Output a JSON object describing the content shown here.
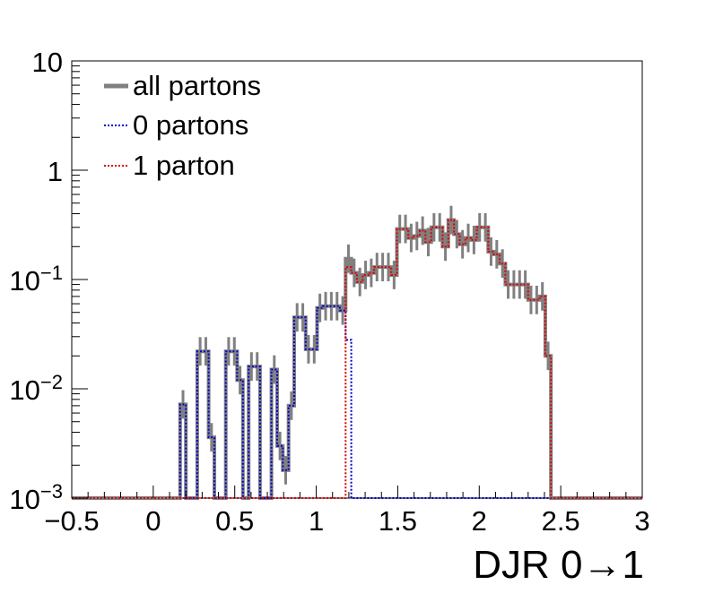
{
  "chart_data": {
    "type": "line",
    "title": "",
    "xlabel": "DJR 0→1",
    "ylabel": "",
    "xlim": [
      -0.5,
      3
    ],
    "ylim": [
      0.001,
      10
    ],
    "yscale": "log",
    "x_tick_labels": [
      "−0.5",
      "0",
      "0.5",
      "1",
      "1.5",
      "2",
      "2.5",
      "3"
    ],
    "x_tick_values": [
      -0.5,
      0,
      0.5,
      1,
      1.5,
      2,
      2.5,
      3
    ],
    "y_tick_labels": [
      {
        "value": 10,
        "base": "10",
        "exp": ""
      },
      {
        "value": 1,
        "base": "1",
        "exp": ""
      },
      {
        "value": 0.1,
        "base": "10",
        "exp": "−1"
      },
      {
        "value": 0.01,
        "base": "10",
        "exp": "−2"
      },
      {
        "value": 0.001,
        "base": "10",
        "exp": "−3"
      }
    ],
    "legend_position": "top-left",
    "bin_edges_start": -0.5,
    "bin_width": 0.035,
    "series": [
      {
        "name": "all partons",
        "color": "#808080",
        "style": "solid",
        "values": [
          0.001,
          0.001,
          0.001,
          0.001,
          0.001,
          0.001,
          0.001,
          0.001,
          0.001,
          0.001,
          0.001,
          0.001,
          0.001,
          0.001,
          0.001,
          0.001,
          0.001,
          0.001,
          0.001,
          0.0072,
          0.001,
          0.001,
          0.022,
          0.022,
          0.0036,
          0.001,
          0.001,
          0.022,
          0.022,
          0.012,
          0.001,
          0.016,
          0.016,
          0.001,
          0.001,
          0.015,
          0.003,
          0.0018,
          0.007,
          0.045,
          0.045,
          0.023,
          0.023,
          0.055,
          0.057,
          0.057,
          0.057,
          0.052,
          0.155,
          0.115,
          0.095,
          0.11,
          0.115,
          0.13,
          0.13,
          0.13,
          0.11,
          0.29,
          0.29,
          0.24,
          0.25,
          0.28,
          0.22,
          0.3,
          0.3,
          0.2,
          0.35,
          0.26,
          0.21,
          0.24,
          0.23,
          0.3,
          0.3,
          0.18,
          0.17,
          0.14,
          0.09,
          0.09,
          0.09,
          0.09,
          0.065,
          0.065,
          0.07,
          0.02,
          0.001,
          0.001,
          0.001,
          0.001,
          0.001,
          0.001,
          0.001,
          0.001,
          0.001,
          0.001,
          0.001,
          0.001,
          0.001,
          0.001,
          0.001,
          0.001
        ],
        "values_from_bin": 0
      },
      {
        "name": "0 partons",
        "color": "#0000cc",
        "style": "dotted",
        "values": [
          0.001,
          0.001,
          0.001,
          0.001,
          0.001,
          0.001,
          0.001,
          0.001,
          0.001,
          0.001,
          0.001,
          0.001,
          0.001,
          0.001,
          0.001,
          0.001,
          0.001,
          0.001,
          0.001,
          0.0072,
          0.001,
          0.001,
          0.022,
          0.022,
          0.0036,
          0.001,
          0.001,
          0.022,
          0.022,
          0.012,
          0.001,
          0.016,
          0.016,
          0.001,
          0.001,
          0.015,
          0.003,
          0.0018,
          0.007,
          0.045,
          0.045,
          0.023,
          0.023,
          0.055,
          0.057,
          0.057,
          0.057,
          0.052,
          0.028,
          0.001
        ],
        "values_from_bin": 0
      },
      {
        "name": "1 parton",
        "color": "#dd0000",
        "style": "dotted",
        "values": [
          0.001,
          0.001,
          0.001,
          0.001,
          0.001,
          0.001,
          0.001,
          0.001,
          0.001,
          0.001,
          0.001,
          0.001,
          0.001,
          0.001,
          0.001,
          0.001,
          0.001,
          0.001,
          0.001,
          0.001,
          0.001,
          0.001,
          0.001,
          0.001,
          0.001,
          0.001,
          0.001,
          0.001,
          0.001,
          0.001,
          0.001,
          0.001,
          0.001,
          0.001,
          0.001,
          0.001,
          0.001,
          0.001,
          0.001,
          0.001,
          0.001,
          0.001,
          0.001,
          0.001,
          0.001,
          0.001,
          0.001,
          0.001,
          0.13,
          0.115,
          0.095,
          0.11,
          0.115,
          0.13,
          0.13,
          0.13,
          0.11,
          0.29,
          0.29,
          0.24,
          0.25,
          0.28,
          0.22,
          0.3,
          0.3,
          0.2,
          0.35,
          0.26,
          0.21,
          0.24,
          0.23,
          0.3,
          0.3,
          0.18,
          0.17,
          0.14,
          0.09,
          0.09,
          0.09,
          0.09,
          0.065,
          0.065,
          0.07,
          0.02,
          0.001,
          0.001,
          0.001,
          0.001,
          0.001,
          0.001,
          0.001,
          0.001,
          0.001,
          0.001,
          0.001,
          0.001,
          0.001,
          0.001,
          0.001,
          0.001
        ],
        "values_from_bin": 0
      }
    ]
  }
}
